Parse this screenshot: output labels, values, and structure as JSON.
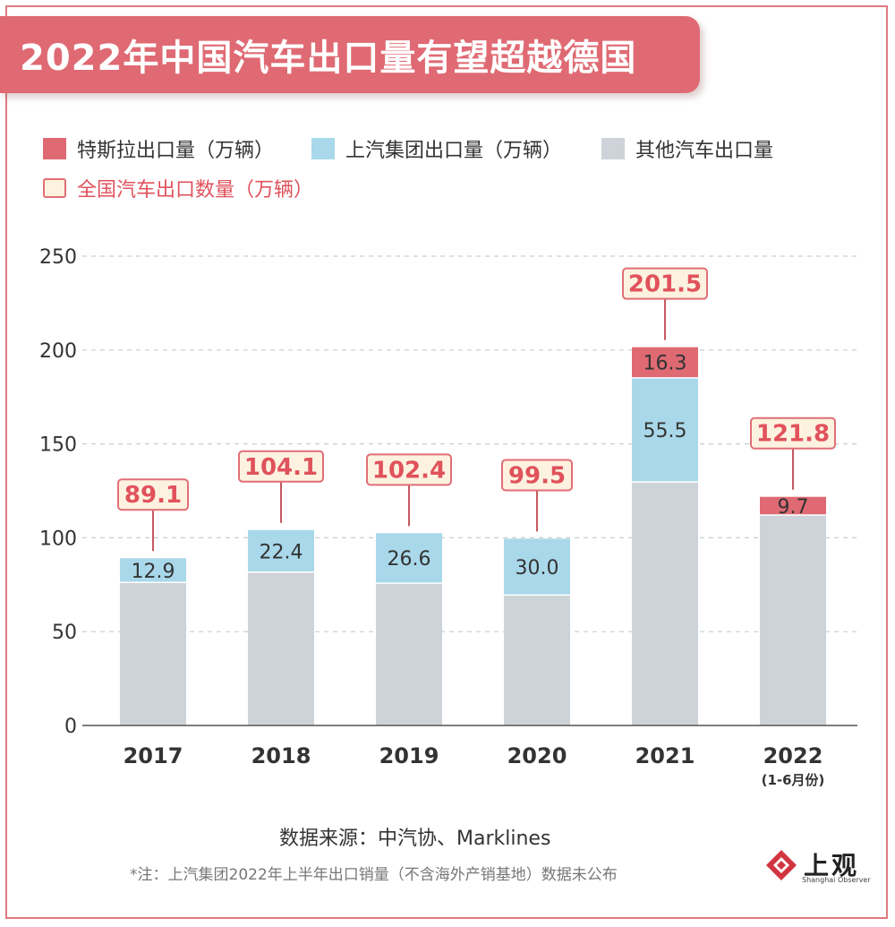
{
  "title": "2022年中国汽车出口量有望超越德国",
  "legend": {
    "tesla": "特斯拉出口量（万辆）",
    "saic": "上汽集团出口量（万辆）",
    "other": "其他汽车出口量",
    "total": "全国汽车出口数量（万辆）"
  },
  "colors": {
    "tesla": "#df6a73",
    "saic": "#a9d8ea",
    "other": "#cdd3d8",
    "total_text": "#e0525c",
    "total_fill": "#fdf2df"
  },
  "chart_data": {
    "type": "bar",
    "stacked": true,
    "categories": [
      "2017",
      "2018",
      "2019",
      "2020",
      "2021",
      "2022"
    ],
    "category_sublabels": [
      "",
      "",
      "",
      "",
      "",
      "(1-6月份)"
    ],
    "ylim": [
      0,
      250
    ],
    "yticks": [
      0,
      50,
      100,
      150,
      200,
      250
    ],
    "grid": "dashed horizontal",
    "series": [
      {
        "name": "其他汽车出口量",
        "key": "other",
        "values": [
          76.2,
          81.7,
          75.8,
          69.5,
          129.7,
          112.1
        ],
        "labels": [
          null,
          null,
          null,
          null,
          null,
          null
        ]
      },
      {
        "name": "上汽集团出口量（万辆）",
        "key": "saic",
        "values": [
          12.9,
          22.4,
          26.6,
          30.0,
          55.5,
          null
        ],
        "labels": [
          "12.9",
          "22.4",
          "26.6",
          "30.0",
          "55.5",
          null
        ]
      },
      {
        "name": "特斯拉出口量（万辆）",
        "key": "tesla",
        "values": [
          null,
          null,
          null,
          null,
          16.3,
          9.7
        ],
        "labels": [
          null,
          null,
          null,
          null,
          "16.3",
          "9.7"
        ]
      }
    ],
    "totals": [
      89.1,
      104.1,
      102.4,
      99.5,
      201.5,
      121.8
    ],
    "total_labels": [
      "89.1",
      "104.1",
      "102.4",
      "99.5",
      "201.5",
      "121.8"
    ]
  },
  "source": "数据来源：中汽协、Marklines",
  "note": "*注：上汽集团2022年上半年出口销量（不含海外产销基地）数据未公布",
  "logo": {
    "name": "上观",
    "sub": "Shanghai Observer"
  }
}
